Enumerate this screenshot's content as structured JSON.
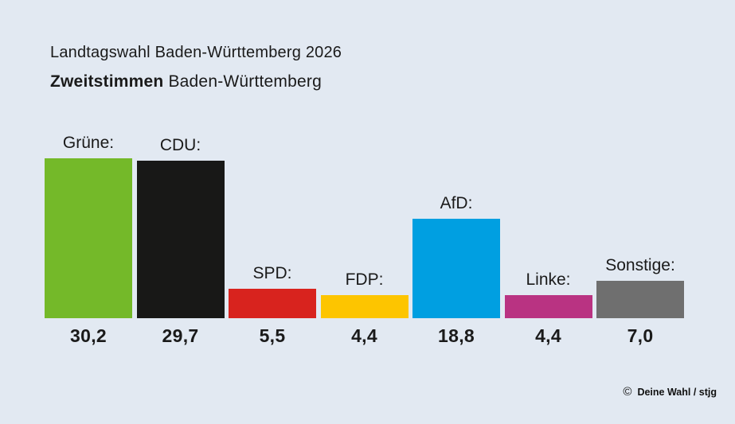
{
  "header": {
    "title": "Landtagswahl Baden-Württemberg 2026",
    "subtitle_bold": "Zweitstimmen",
    "subtitle_rest": " Baden-Württemberg"
  },
  "chart_data": {
    "type": "bar",
    "title": "Landtagswahl Baden-Württemberg 2026 — Zweitstimmen Baden-Württemberg",
    "categories": [
      "Grüne",
      "CDU",
      "SPD",
      "FDP",
      "AfD",
      "Linke",
      "Sonstige"
    ],
    "bar_labels": [
      "Grüne:",
      "CDU:",
      "SPD:",
      "FDP:",
      "AfD:",
      "Linke:",
      "Sonstige:"
    ],
    "values": [
      30.2,
      29.7,
      5.5,
      4.4,
      18.8,
      4.4,
      7.0
    ],
    "value_labels": [
      "30,2",
      "29,7",
      "5,5",
      "4,4",
      "18,8",
      "4,4",
      "7,0"
    ],
    "colors": [
      "#74b929",
      "#181817",
      "#d8231e",
      "#fdc500",
      "#009fe1",
      "#b93382",
      "#6f6f6f"
    ],
    "slugs": [
      "gruene",
      "cdu",
      "spd",
      "fdp",
      "afd",
      "linke",
      "sonstige"
    ],
    "unit": "percent",
    "xlabel": "",
    "ylabel": "",
    "ylim": [
      0,
      30.2
    ],
    "grid": false,
    "legend": false
  },
  "footer": {
    "copyright_symbol": "©",
    "attribution": "Deine Wahl / stjg"
  },
  "colors": {
    "background": "#e2e9f2",
    "text": "#1a1a1a"
  }
}
